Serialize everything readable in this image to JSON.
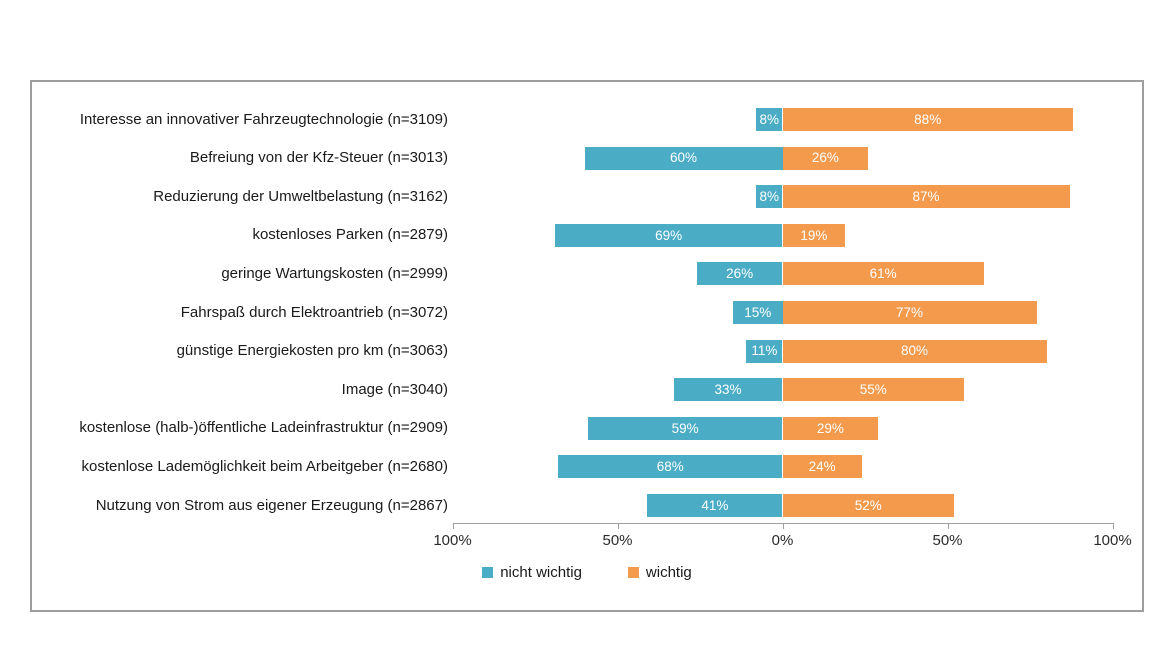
{
  "chart_data": {
    "type": "bar",
    "orientation": "horizontal-diverging",
    "title": "",
    "xlabel": "",
    "ylabel": "",
    "xlim": [
      -100,
      100
    ],
    "grid": false,
    "legend_position": "bottom-center",
    "value_suffix": "%",
    "categories": [
      "Interesse an innovativer Fahrzeugtechnologie (n=3109)",
      "Befreiung von der Kfz-Steuer (n=3013)",
      "Reduzierung der Umweltbelastung  (n=3162)",
      "kostenloses Parken (n=2879)",
      "geringe Wartungskosten (n=2999)",
      "Fahrspaß durch Elektroantrieb (n=3072)",
      "günstige Energiekosten pro km (n=3063)",
      "Image (n=3040)",
      "kostenlose (halb-)öffentliche Ladeinfrastruktur  (n=2909)",
      "kostenlose Lademöglichkeit beim Arbeitgeber (n=2680)",
      "Nutzung von Strom aus eigener Erzeugung (n=2867)"
    ],
    "series": [
      {
        "name": "nicht wichtig",
        "color": "#4bacc6",
        "direction": "left",
        "values": [
          8,
          60,
          8,
          69,
          26,
          15,
          11,
          33,
          59,
          68,
          41
        ],
        "labels": [
          "8%",
          "60%",
          "8%",
          "69%",
          "26%",
          "15%",
          "11%",
          "33%",
          "59%",
          "68%",
          "41%"
        ]
      },
      {
        "name": "wichtig",
        "color": "#f49a4c",
        "direction": "right",
        "values": [
          88,
          26,
          87,
          19,
          61,
          77,
          80,
          55,
          29,
          24,
          52
        ],
        "labels": [
          "88%",
          "26%",
          "87%",
          "19%",
          "61%",
          "77%",
          "80%",
          "55%",
          "29%",
          "24%",
          "52%"
        ]
      }
    ],
    "axis": {
      "tick_values": [
        -100,
        -50,
        0,
        50,
        100
      ],
      "tick_labels": [
        "100%",
        "50%",
        "0%",
        "50%",
        "100%"
      ]
    },
    "legend": [
      {
        "label": "nicht wichtig",
        "color": "#4bacc6"
      },
      {
        "label": "wichtig",
        "color": "#f49a4c"
      }
    ],
    "colors": {
      "frame_border": "#9e9e9e",
      "axis": "#9e9e9e",
      "bar_value_text": "#ffffff",
      "category_text": "#1a1a1a",
      "background": "#ffffff"
    }
  }
}
